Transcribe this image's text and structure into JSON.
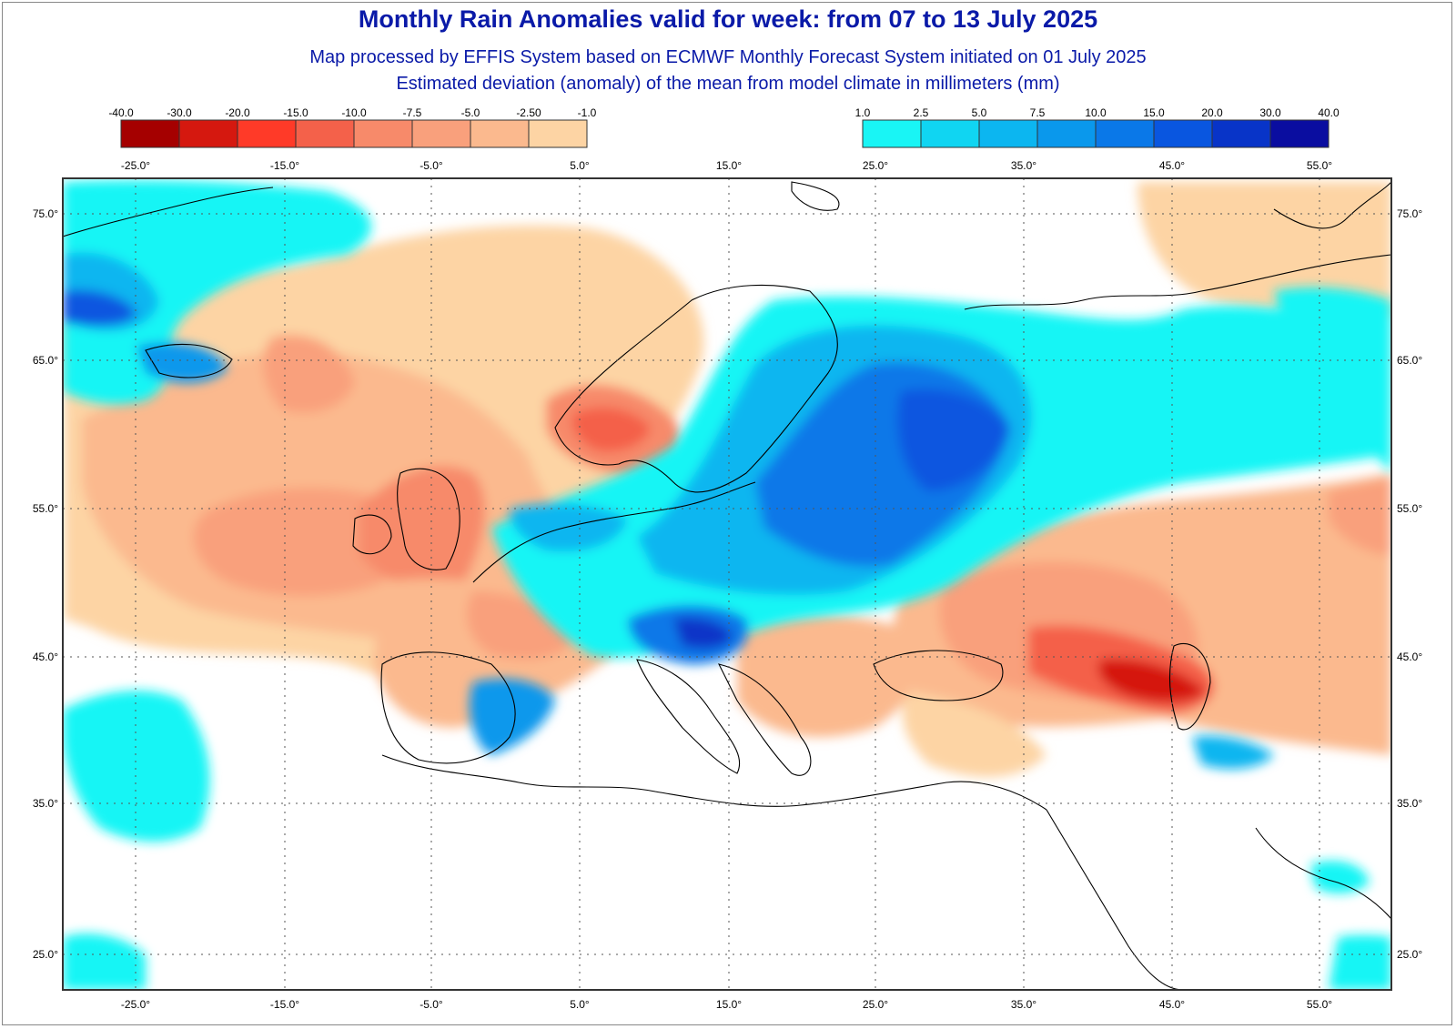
{
  "title": "Monthly Rain Anomalies valid for week: from 07 to 13 July 2025",
  "subtitle_1": "Map processed by EFFIS System based on ECMWF Monthly Forecast System initiated on 01 July 2025",
  "subtitle_2": "Estimated deviation (anomaly) of the mean from model climate in millimeters (mm)",
  "legend_negative": {
    "labels": [
      "-40.0",
      "-30.0",
      "-20.0",
      "-15.0",
      "-10.0",
      "-7.5",
      "-5.0",
      "-2.50",
      "-1.0"
    ],
    "colors": [
      "#a50000",
      "#d5180f",
      "#ff3a28",
      "#f4614a",
      "#f78a6a",
      "#f9a07c",
      "#fbb98e",
      "#fdd4a4"
    ]
  },
  "legend_positive": {
    "labels": [
      "1.0",
      "2.5",
      "5.0",
      "7.5",
      "10.0",
      "15.0",
      "20.0",
      "30.0",
      "40.0"
    ],
    "colors": [
      "#19f5f5",
      "#10d5f2",
      "#0cb6f0",
      "#0a98ec",
      "#0a78e8",
      "#0956e0",
      "#0834c8",
      "#0a0da0"
    ]
  },
  "axis": {
    "lon_labels": [
      "-25.0°",
      "-15.0°",
      "-5.0°",
      "5.0°",
      "15.0°",
      "25.0°",
      "35.0°",
      "45.0°",
      "55.0°"
    ],
    "lat_labels": [
      "75.0°",
      "65.0°",
      "55.0°",
      "45.0°",
      "35.0°",
      "25.0°"
    ]
  },
  "colors": {
    "title": "#0a1aa8",
    "frame": "#333333"
  }
}
